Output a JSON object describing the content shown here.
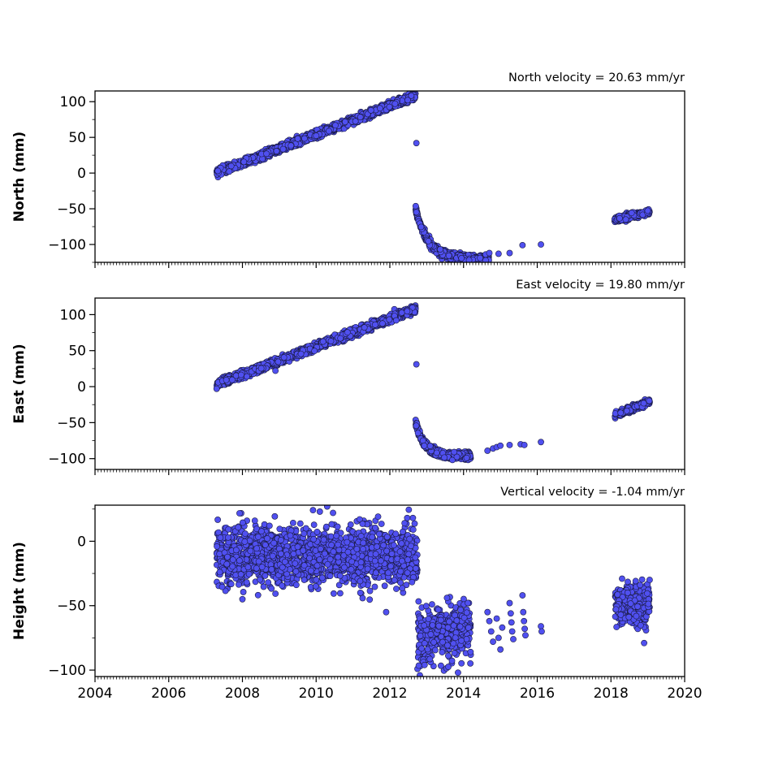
{
  "chart_data": [
    {
      "type": "scatter",
      "title": "North velocity = 20.63 mm/yr",
      "xlabel": "",
      "ylabel": "North (mm)",
      "xlim": [
        2004,
        2020
      ],
      "ylim": [
        -125,
        115
      ],
      "yticks": [
        100,
        50,
        0,
        -50,
        -100
      ],
      "ytick_labels": [
        "100",
        "50",
        "0",
        "−50",
        "−100"
      ],
      "marker_color": "#5050f0",
      "segments": [
        {
          "t0": 2007.3,
          "t1": 2012.7,
          "v0": 0,
          "v1": 108,
          "spread": 2.5
        },
        {
          "t0": 2012.7,
          "t1": 2014.7,
          "v0": -50,
          "v1": -120,
          "spread": 2.5,
          "decay": true
        },
        {
          "t0": 2018.1,
          "t1": 2019.05,
          "v0": -66,
          "v1": -54,
          "spread": 2
        }
      ],
      "points": [
        {
          "x": 2012.72,
          "y": 42
        },
        {
          "x": 2014.15,
          "y": -122
        },
        {
          "x": 2014.45,
          "y": -119
        },
        {
          "x": 2014.6,
          "y": -114
        },
        {
          "x": 2014.7,
          "y": -112
        },
        {
          "x": 2014.95,
          "y": -113
        },
        {
          "x": 2015.25,
          "y": -112
        },
        {
          "x": 2015.6,
          "y": -101
        },
        {
          "x": 2016.1,
          "y": -100
        }
      ]
    },
    {
      "type": "scatter",
      "title": "East velocity = 19.80 mm/yr",
      "xlabel": "",
      "ylabel": "East (mm)",
      "xlim": [
        2004,
        2020
      ],
      "ylim": [
        -115,
        123
      ],
      "yticks": [
        100,
        50,
        0,
        -50,
        -100
      ],
      "ytick_labels": [
        "100",
        "50",
        "0",
        "−50",
        "−100"
      ],
      "marker_color": "#5050f0",
      "segments": [
        {
          "t0": 2007.3,
          "t1": 2012.7,
          "v0": 3,
          "v1": 108,
          "spread": 2.5
        },
        {
          "t0": 2012.7,
          "t1": 2014.2,
          "v0": -50,
          "v1": -96,
          "spread": 2.5,
          "decay": true
        },
        {
          "t0": 2018.1,
          "t1": 2019.05,
          "v0": -40,
          "v1": -21,
          "spread": 2
        }
      ],
      "points": [
        {
          "x": 2007.3,
          "y": -3
        },
        {
          "x": 2012.72,
          "y": 31
        },
        {
          "x": 2014.65,
          "y": -89
        },
        {
          "x": 2014.8,
          "y": -86
        },
        {
          "x": 2014.9,
          "y": -84
        },
        {
          "x": 2015.0,
          "y": -82
        },
        {
          "x": 2015.25,
          "y": -81
        },
        {
          "x": 2015.55,
          "y": -80
        },
        {
          "x": 2015.65,
          "y": -81
        },
        {
          "x": 2016.1,
          "y": -77
        }
      ]
    },
    {
      "type": "scatter",
      "title": "Vertical velocity = -1.04 mm/yr",
      "xlabel": "",
      "ylabel": "Height (mm)",
      "xlim": [
        2004,
        2020
      ],
      "ylim": [
        -105,
        28
      ],
      "xticks": [
        2004,
        2006,
        2008,
        2010,
        2012,
        2014,
        2016,
        2018,
        2020
      ],
      "xtick_labels": [
        "2004",
        "2006",
        "2008",
        "2010",
        "2012",
        "2014",
        "2016",
        "2018",
        "2020"
      ],
      "yticks": [
        0,
        -50,
        -100
      ],
      "ytick_labels": [
        "0",
        "−50",
        "−100"
      ],
      "marker_color": "#5050f0",
      "segments": [
        {
          "t0": 2007.3,
          "t1": 2012.75,
          "v0": -10,
          "v1": -12,
          "spread": 11
        },
        {
          "t0": 2012.75,
          "t1": 2014.2,
          "v0": -74,
          "v1": -70,
          "spread": 10
        },
        {
          "t0": 2018.1,
          "t1": 2019.05,
          "v0": -48,
          "v1": -50,
          "spread": 8
        }
      ],
      "points": [
        {
          "x": 2010.3,
          "y": 27
        },
        {
          "x": 2010.1,
          "y": 23
        },
        {
          "x": 2008.0,
          "y": -45
        },
        {
          "x": 2011.9,
          "y": -55
        },
        {
          "x": 2011.2,
          "y": -40
        },
        {
          "x": 2013.85,
          "y": -102
        },
        {
          "x": 2014.65,
          "y": -55
        },
        {
          "x": 2014.7,
          "y": -62
        },
        {
          "x": 2014.75,
          "y": -70
        },
        {
          "x": 2014.8,
          "y": -78
        },
        {
          "x": 2014.9,
          "y": -60
        },
        {
          "x": 2014.95,
          "y": -75
        },
        {
          "x": 2015.0,
          "y": -84
        },
        {
          "x": 2015.05,
          "y": -67
        },
        {
          "x": 2015.25,
          "y": -48
        },
        {
          "x": 2015.28,
          "y": -56
        },
        {
          "x": 2015.3,
          "y": -63
        },
        {
          "x": 2015.32,
          "y": -70
        },
        {
          "x": 2015.35,
          "y": -76
        },
        {
          "x": 2015.6,
          "y": -42
        },
        {
          "x": 2015.62,
          "y": -55
        },
        {
          "x": 2015.64,
          "y": -62
        },
        {
          "x": 2015.66,
          "y": -68
        },
        {
          "x": 2015.68,
          "y": -73
        },
        {
          "x": 2016.1,
          "y": -66
        },
        {
          "x": 2016.12,
          "y": -70
        },
        {
          "x": 2019.05,
          "y": -30
        },
        {
          "x": 2018.9,
          "y": -79
        }
      ]
    }
  ]
}
